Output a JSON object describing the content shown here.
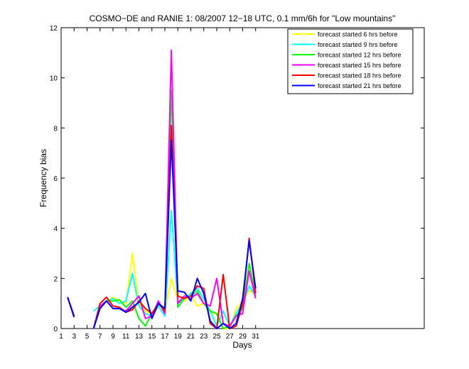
{
  "chart_data": {
    "type": "line",
    "title": "COSMO−DE and RANIE 1: 08/2007 12−18 UTC, 0.1 mm/6h for \"Low mountains\"",
    "xlabel": "Days",
    "ylabel": "Frequency bias",
    "xlim": [
      1,
      57
    ],
    "ylim": [
      0,
      12
    ],
    "xticks": [
      1,
      3,
      5,
      7,
      9,
      11,
      13,
      15,
      17,
      19,
      21,
      23,
      25,
      27,
      29,
      31
    ],
    "yticks": [
      0,
      2,
      4,
      6,
      8,
      10,
      12
    ],
    "legend_position": "top-right",
    "grid": false,
    "series": [
      {
        "name": "forecast started 6 hrs before",
        "color": "#ffff00",
        "values": [
          [
            2,
            1.25
          ],
          [
            3,
            0.5
          ],
          [
            null,
            null
          ],
          [
            6,
            0
          ],
          [
            7,
            0.8
          ],
          [
            8,
            1.1
          ],
          [
            9,
            1.25
          ],
          [
            10,
            1.1
          ],
          [
            11,
            1.0
          ],
          [
            12,
            3.0
          ],
          [
            13,
            1.0
          ],
          [
            14,
            0.7
          ],
          [
            15,
            0.5
          ],
          [
            16,
            1.0
          ],
          [
            17,
            0.7
          ],
          [
            18,
            2.0
          ],
          [
            19,
            1.1
          ],
          [
            20,
            1.1
          ],
          [
            21,
            1.3
          ],
          [
            22,
            0.9
          ],
          [
            23,
            1.0
          ],
          [
            24,
            0.6
          ],
          [
            25,
            0.6
          ],
          [
            26,
            0.0
          ],
          [
            27,
            0.0
          ],
          [
            28,
            0.8
          ],
          [
            29,
            1.1
          ],
          [
            30,
            1.5
          ],
          [
            31,
            1.4
          ]
        ]
      },
      {
        "name": "forecast started 9 hrs before",
        "color": "#00ffff",
        "values": [
          [
            2,
            1.25
          ],
          [
            3,
            0.5
          ],
          [
            null,
            null
          ],
          [
            6,
            0.7
          ],
          [
            7,
            0.9
          ],
          [
            8,
            1.1
          ],
          [
            9,
            1.2
          ],
          [
            10,
            1.0
          ],
          [
            11,
            1.1
          ],
          [
            12,
            2.2
          ],
          [
            13,
            0.9
          ],
          [
            14,
            0.6
          ],
          [
            15,
            0.5
          ],
          [
            16,
            0.9
          ],
          [
            17,
            0.5
          ],
          [
            18,
            4.7
          ],
          [
            19,
            1.0
          ],
          [
            20,
            1.2
          ],
          [
            21,
            1.4
          ],
          [
            22,
            1.6
          ],
          [
            23,
            1.2
          ],
          [
            24,
            0.7
          ],
          [
            25,
            0.1
          ],
          [
            26,
            0.7
          ],
          [
            27,
            0.1
          ],
          [
            28,
            0.6
          ],
          [
            29,
            1.0
          ],
          [
            30,
            1.7
          ],
          [
            31,
            1.3
          ]
        ]
      },
      {
        "name": "forecast started 12 hrs before",
        "color": "#00ff00",
        "values": [
          [
            2,
            1.25
          ],
          [
            3,
            0.5
          ],
          [
            null,
            null
          ],
          [
            6,
            0
          ],
          [
            7,
            0.8
          ],
          [
            8,
            1.1
          ],
          [
            9,
            1.1
          ],
          [
            10,
            1.15
          ],
          [
            11,
            0.85
          ],
          [
            12,
            1.1
          ],
          [
            13,
            0.4
          ],
          [
            14,
            0.1
          ],
          [
            15,
            0.6
          ],
          [
            16,
            1.0
          ],
          [
            17,
            0.8
          ],
          [
            18,
            9.5
          ],
          [
            19,
            0.85
          ],
          [
            20,
            1.2
          ],
          [
            21,
            1.3
          ],
          [
            22,
            1.5
          ],
          [
            23,
            1.0
          ],
          [
            24,
            0.7
          ],
          [
            25,
            0.6
          ],
          [
            26,
            0.0
          ],
          [
            27,
            0.1
          ],
          [
            28,
            0.5
          ],
          [
            29,
            0.8
          ],
          [
            30,
            2.6
          ],
          [
            31,
            1.3
          ]
        ]
      },
      {
        "name": "forecast started 15 hrs before",
        "color": "#ff00ff",
        "values": [
          [
            2,
            1.25
          ],
          [
            3,
            0.5
          ],
          [
            null,
            null
          ],
          [
            6,
            0
          ],
          [
            7,
            0.9
          ],
          [
            8,
            1.1
          ],
          [
            9,
            0.8
          ],
          [
            10,
            0.8
          ],
          [
            11,
            0.7
          ],
          [
            12,
            1.0
          ],
          [
            13,
            1.3
          ],
          [
            14,
            0.4
          ],
          [
            15,
            0.5
          ],
          [
            16,
            1.1
          ],
          [
            17,
            0.6
          ],
          [
            18,
            11.1
          ],
          [
            19,
            1.0
          ],
          [
            20,
            1.3
          ],
          [
            21,
            1.2
          ],
          [
            22,
            1.4
          ],
          [
            23,
            1.0
          ],
          [
            24,
            0.9
          ],
          [
            25,
            2.0
          ],
          [
            26,
            0.2
          ],
          [
            27,
            0.1
          ],
          [
            28,
            0.5
          ],
          [
            29,
            0.6
          ],
          [
            30,
            2.3
          ],
          [
            31,
            1.2
          ]
        ]
      },
      {
        "name": "forecast started 18 hrs before",
        "color": "#ff0000",
        "values": [
          [
            2,
            1.25
          ],
          [
            3,
            0.5
          ],
          [
            null,
            null
          ],
          [
            6,
            0
          ],
          [
            7,
            1.0
          ],
          [
            8,
            1.25
          ],
          [
            9,
            0.9
          ],
          [
            10,
            0.85
          ],
          [
            11,
            0.65
          ],
          [
            12,
            0.75
          ],
          [
            13,
            1.1
          ],
          [
            14,
            0.8
          ],
          [
            15,
            0.6
          ],
          [
            16,
            1.0
          ],
          [
            17,
            0.7
          ],
          [
            18,
            8.1
          ],
          [
            19,
            1.3
          ],
          [
            20,
            1.2
          ],
          [
            21,
            1.3
          ],
          [
            22,
            1.7
          ],
          [
            23,
            1.6
          ],
          [
            24,
            0.2
          ],
          [
            25,
            0.0
          ],
          [
            26,
            2.15
          ],
          [
            27,
            0.0
          ],
          [
            28,
            0.1
          ],
          [
            29,
            1.0
          ],
          [
            30,
            3.6
          ],
          [
            31,
            1.4
          ]
        ]
      },
      {
        "name": "forecast started 21 hrs before",
        "color": "#0000ff",
        "values": [
          [
            2,
            1.25
          ],
          [
            3,
            0.45
          ],
          [
            null,
            null
          ],
          [
            6,
            0
          ],
          [
            7,
            0.8
          ],
          [
            8,
            1.1
          ],
          [
            9,
            0.8
          ],
          [
            10,
            0.8
          ],
          [
            11,
            0.65
          ],
          [
            12,
            0.85
          ],
          [
            13,
            1.05
          ],
          [
            14,
            1.4
          ],
          [
            15,
            0.4
          ],
          [
            16,
            1.0
          ],
          [
            17,
            0.8
          ],
          [
            18,
            7.5
          ],
          [
            19,
            1.5
          ],
          [
            20,
            1.45
          ],
          [
            21,
            1.1
          ],
          [
            22,
            2.0
          ],
          [
            23,
            1.4
          ],
          [
            24,
            0.3
          ],
          [
            25,
            0.0
          ],
          [
            26,
            0.2
          ],
          [
            27,
            0.0
          ],
          [
            28,
            0.2
          ],
          [
            29,
            1.2
          ],
          [
            30,
            3.5
          ],
          [
            31,
            1.6
          ]
        ]
      }
    ]
  }
}
